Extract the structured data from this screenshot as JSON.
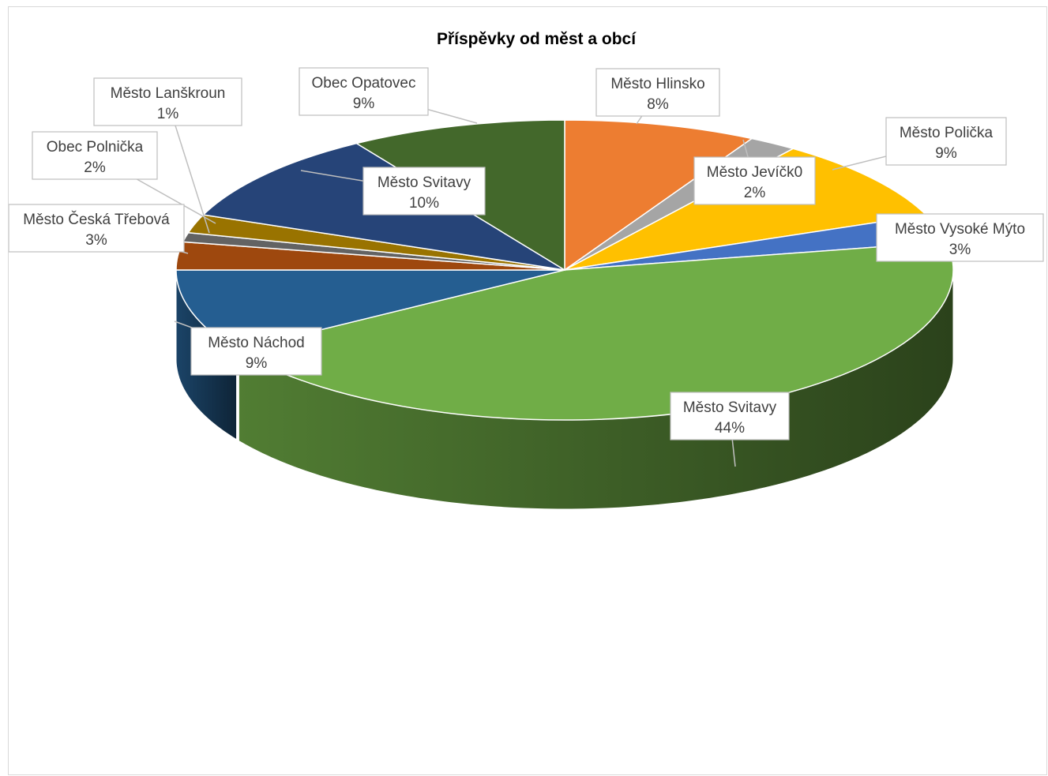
{
  "chart_data": {
    "type": "pie",
    "title": "Příspěvky od měst a obcí",
    "categories": [
      "Město Hlinsko",
      "Město Jevíčk0",
      "Město Polička",
      "Město Vysoké Mýto",
      "Město Svitavy",
      "Město Náchod",
      "Město Česká Třebová",
      "Město Lanškroun",
      "Obec Polnička",
      "Město Svitavy",
      "Obec Opatovec"
    ],
    "values": [
      8,
      2,
      9,
      3,
      44,
      9,
      3,
      1,
      2,
      10,
      9
    ],
    "value_labels": [
      "8%",
      "2%",
      "9%",
      "3%",
      "44%",
      "9%",
      "3%",
      "1%",
      "2%",
      "10%",
      "9%"
    ],
    "colors": [
      "#ED7D31",
      "#A5A5A5",
      "#FFC000",
      "#4472C4",
      "#70AD47",
      "#255E91",
      "#9E480E",
      "#636363",
      "#997300",
      "#264478",
      "#43682B"
    ],
    "style": "3d",
    "legend": "none"
  }
}
